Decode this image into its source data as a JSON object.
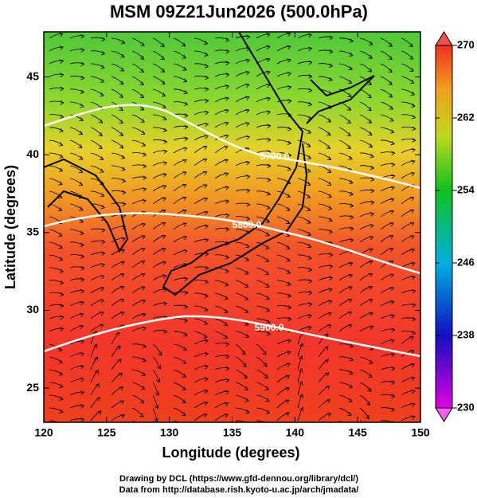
{
  "title": "MSM 09Z21Jun2026 (500.0hPa)",
  "map": {
    "x_label": "Longitude (degrees)",
    "y_label": "Latitude  (degrees)",
    "xlim": [
      120,
      150
    ],
    "ylim": [
      22.8,
      47.9
    ],
    "xticks": [
      120,
      125,
      130,
      135,
      140,
      145,
      150
    ],
    "yticks": [
      25,
      30,
      35,
      40,
      45
    ],
    "contours": [
      {
        "value": 5700,
        "label": "5700.0"
      },
      {
        "value": 5800,
        "label": "5800.0"
      },
      {
        "value": 5900,
        "label": "5900.0"
      }
    ]
  },
  "colorbar": {
    "lim": [
      230,
      270
    ],
    "ticks": [
      230,
      238,
      246,
      254,
      262,
      270
    ]
  },
  "credits": [
    "Drawing by DCL (https://www.gfd-dennou.org/library/dcl/)",
    "Data from http://database.rish.kyoto-u.ac.jp/arch/jmadata/"
  ]
}
